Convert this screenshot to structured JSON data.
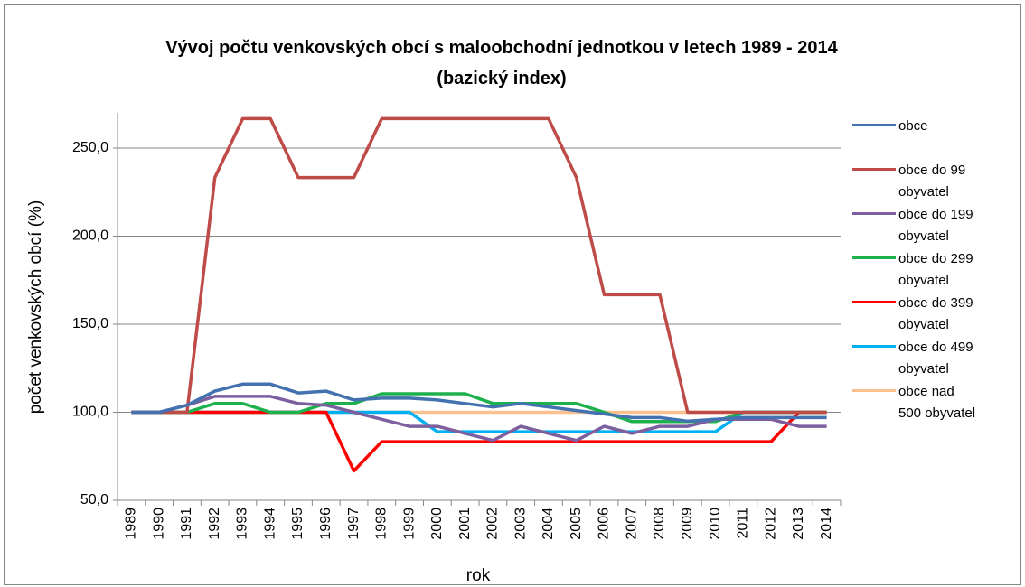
{
  "chart_data": {
    "type": "line",
    "title": "Vývoj počtu venkovských obcí s maloobchodní jednotkou v letech 1989 - 2014 (bazický index)",
    "y_label": "počet venkovských obcí (%)",
    "x_label": "rok",
    "categories": [
      "1989",
      "1990",
      "1991",
      "1992",
      "1993",
      "1994",
      "1995",
      "1996",
      "1997",
      "1998",
      "1999",
      "2000",
      "2001",
      "2002",
      "2003",
      "2004",
      "2005",
      "2006",
      "2007",
      "2008",
      "2009",
      "2010",
      "2011",
      "2012",
      "2013",
      "2014"
    ],
    "ylim": [
      50,
      270
    ],
    "yticks": [
      {
        "value": 50,
        "label": "50,0"
      },
      {
        "value": 100,
        "label": "100,0"
      },
      {
        "value": 150,
        "label": "150,0"
      },
      {
        "value": 200,
        "label": "200,0"
      },
      {
        "value": 250,
        "label": "250,0"
      }
    ],
    "grid": true,
    "legend": "right",
    "series": [
      {
        "name": "obce",
        "color": "#4472b0",
        "values": [
          100,
          100,
          104,
          112,
          116,
          116,
          111,
          112,
          107,
          108,
          108,
          107,
          105,
          103,
          105,
          103,
          101,
          99,
          97,
          97,
          95,
          96,
          97,
          97,
          97,
          97
        ]
      },
      {
        "name": "obce do 99 obyvatel",
        "color": "#be4b48",
        "values": [
          100,
          100,
          100,
          233.3,
          266.7,
          266.7,
          233.3,
          233.3,
          233.3,
          266.7,
          266.7,
          266.7,
          266.7,
          266.7,
          266.7,
          266.7,
          233.3,
          166.7,
          166.7,
          166.7,
          100,
          100,
          100,
          100,
          100,
          100
        ]
      },
      {
        "name": "obce do 199 obyvatel",
        "color": "#7d5fa0",
        "values": [
          100,
          100,
          104,
          109,
          109,
          109,
          105,
          104,
          100,
          96,
          92,
          92,
          88,
          84,
          92,
          88,
          84,
          92,
          88,
          92,
          92,
          96,
          96,
          96,
          92,
          92
        ]
      },
      {
        "name": "obce do 299 obyvatel",
        "color": "#1fb04e",
        "values": [
          100,
          100,
          100,
          105,
          105,
          100,
          100,
          105,
          105,
          110.5,
          110.5,
          110.5,
          110.5,
          105,
          105,
          105,
          105,
          100,
          94.7,
          94.7,
          94.7,
          94.7,
          100,
          100,
          100,
          100
        ]
      },
      {
        "name": "obce do 399 obyvatel",
        "color": "#ff0000",
        "values": [
          100,
          100,
          100,
          100,
          100,
          100,
          100,
          100,
          66.7,
          83.3,
          83.3,
          83.3,
          83.3,
          83.3,
          83.3,
          83.3,
          83.3,
          83.3,
          83.3,
          83.3,
          83.3,
          83.3,
          83.3,
          83.3,
          100,
          100
        ]
      },
      {
        "name": "obce do 499 obyvatel",
        "color": "#00b0f0",
        "values": [
          100,
          100,
          100,
          100,
          100,
          100,
          100,
          100,
          100,
          100,
          100,
          88.9,
          88.9,
          88.9,
          88.9,
          88.9,
          88.9,
          88.9,
          88.9,
          88.9,
          88.9,
          88.9,
          100,
          100,
          100,
          100
        ]
      },
      {
        "name": "obce nad 500 obyvatel",
        "color": "#fac090",
        "values": [
          100,
          100,
          100,
          100,
          100,
          100,
          100,
          100,
          100,
          100,
          100,
          100,
          100,
          100,
          100,
          100,
          100,
          100,
          100,
          100,
          100,
          100,
          100,
          100,
          100,
          100
        ]
      }
    ]
  }
}
